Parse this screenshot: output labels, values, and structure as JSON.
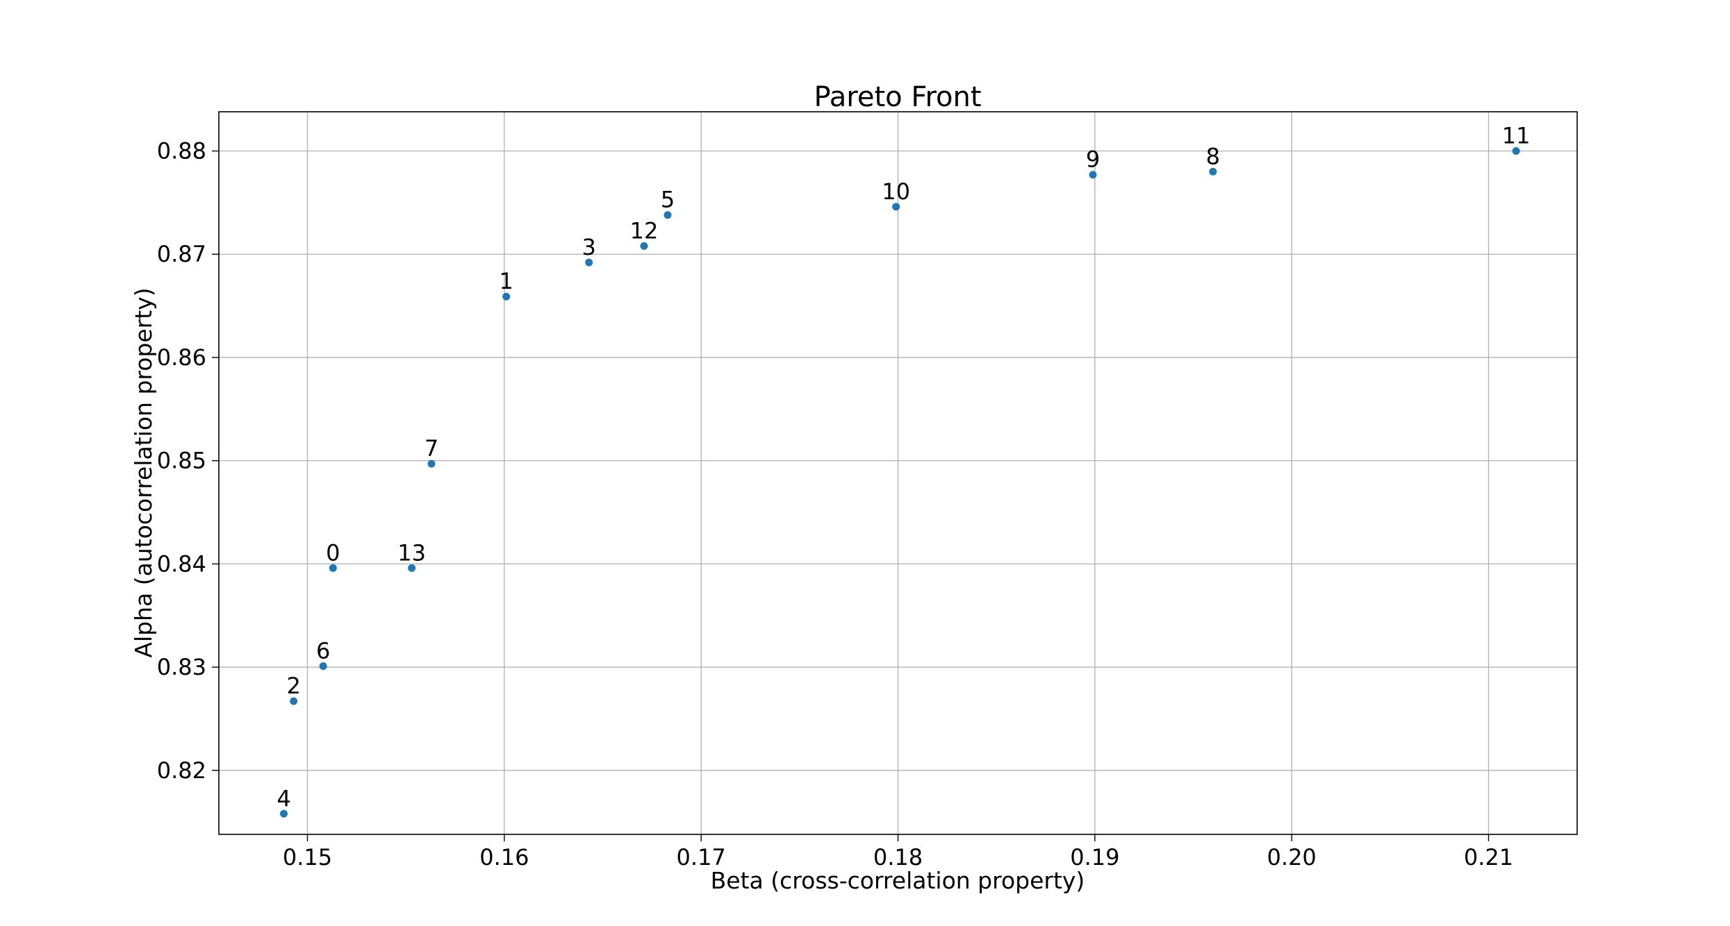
{
  "chart_data": {
    "type": "scatter",
    "title": "Pareto Front",
    "xlabel": "Beta (cross-correlation property)",
    "ylabel": "Alpha (autocorrelation property)",
    "xlim": [
      0.1455,
      0.2145
    ],
    "ylim": [
      0.8138,
      0.8838
    ],
    "xticks": [
      0.15,
      0.16,
      0.17,
      0.18,
      0.19,
      0.2,
      0.21
    ],
    "xtick_labels": [
      "0.15",
      "0.16",
      "0.17",
      "0.18",
      "0.19",
      "0.20",
      "0.21"
    ],
    "yticks": [
      0.82,
      0.83,
      0.84,
      0.85,
      0.86,
      0.87,
      0.88
    ],
    "ytick_labels": [
      "0.82",
      "0.83",
      "0.84",
      "0.85",
      "0.86",
      "0.87",
      "0.88"
    ],
    "grid": true,
    "marker_color": "#1f77b4",
    "points": [
      {
        "label": "0",
        "x": 0.1513,
        "y": 0.8396
      },
      {
        "label": "1",
        "x": 0.1601,
        "y": 0.8659
      },
      {
        "label": "2",
        "x": 0.1493,
        "y": 0.8267
      },
      {
        "label": "3",
        "x": 0.1643,
        "y": 0.8692
      },
      {
        "label": "4",
        "x": 0.1488,
        "y": 0.8158
      },
      {
        "label": "5",
        "x": 0.1683,
        "y": 0.8738
      },
      {
        "label": "6",
        "x": 0.1508,
        "y": 0.8301
      },
      {
        "label": "7",
        "x": 0.1563,
        "y": 0.8497
      },
      {
        "label": "8",
        "x": 0.196,
        "y": 0.878
      },
      {
        "label": "9",
        "x": 0.1899,
        "y": 0.8777
      },
      {
        "label": "10",
        "x": 0.1799,
        "y": 0.8746
      },
      {
        "label": "11",
        "x": 0.2114,
        "y": 0.88
      },
      {
        "label": "12",
        "x": 0.1671,
        "y": 0.8708
      },
      {
        "label": "13",
        "x": 0.1553,
        "y": 0.8396
      }
    ]
  }
}
